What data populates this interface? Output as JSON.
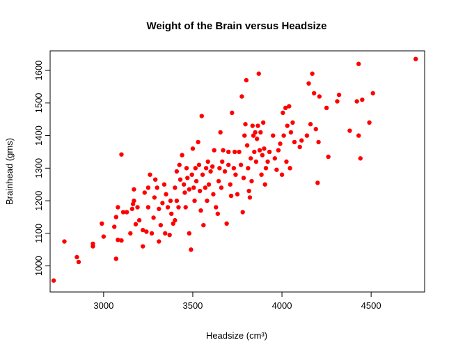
{
  "chart_data": {
    "type": "scatter",
    "title": "Weight of the Brain versus Headsize",
    "xlabel": "Headsize (cm³)",
    "ylabel": "Brainhead (gms)",
    "xlim": [
      2700,
      4800
    ],
    "ylim": [
      920,
      1660
    ],
    "xticks": [
      3000,
      3500,
      4000,
      4500
    ],
    "yticks": [
      1000,
      1100,
      1200,
      1300,
      1400,
      1500,
      1600
    ],
    "grid": false,
    "legend": "none",
    "point_color": "#ff0000",
    "points": [
      [
        2720,
        955
      ],
      [
        2780,
        1075
      ],
      [
        2850,
        1027
      ],
      [
        2860,
        1012
      ],
      [
        2940,
        1060
      ],
      [
        2940,
        1068
      ],
      [
        2990,
        1130
      ],
      [
        3000,
        1090
      ],
      [
        3060,
        1120
      ],
      [
        3070,
        1022
      ],
      [
        3070,
        1150
      ],
      [
        3080,
        1080
      ],
      [
        3080,
        1180
      ],
      [
        3100,
        1078
      ],
      [
        3100,
        1342
      ],
      [
        3110,
        1165
      ],
      [
        3130,
        1165
      ],
      [
        3150,
        1100
      ],
      [
        3160,
        1175
      ],
      [
        3165,
        1190
      ],
      [
        3170,
        1200
      ],
      [
        3170,
        1235
      ],
      [
        3180,
        1128
      ],
      [
        3190,
        1180
      ],
      [
        3200,
        1140
      ],
      [
        3220,
        1060
      ],
      [
        3220,
        1110
      ],
      [
        3230,
        1225
      ],
      [
        3240,
        1105
      ],
      [
        3250,
        1180
      ],
      [
        3250,
        1240
      ],
      [
        3260,
        1280
      ],
      [
        3270,
        1100
      ],
      [
        3280,
        1148
      ],
      [
        3285,
        1210
      ],
      [
        3290,
        1265
      ],
      [
        3300,
        1240
      ],
      [
        3310,
        1075
      ],
      [
        3310,
        1175
      ],
      [
        3320,
        1125
      ],
      [
        3330,
        1193
      ],
      [
        3340,
        1250
      ],
      [
        3345,
        1100
      ],
      [
        3350,
        1220
      ],
      [
        3360,
        1180
      ],
      [
        3370,
        1095
      ],
      [
        3375,
        1200
      ],
      [
        3380,
        1160
      ],
      [
        3390,
        1130
      ],
      [
        3400,
        1140
      ],
      [
        3400,
        1240
      ],
      [
        3410,
        1200
      ],
      [
        3410,
        1290
      ],
      [
        3420,
        1180
      ],
      [
        3425,
        1310
      ],
      [
        3430,
        1265
      ],
      [
        3440,
        1340
      ],
      [
        3450,
        1250
      ],
      [
        3455,
        1225
      ],
      [
        3460,
        1180
      ],
      [
        3465,
        1300
      ],
      [
        3470,
        1270
      ],
      [
        3480,
        1100
      ],
      [
        3480,
        1235
      ],
      [
        3490,
        1050
      ],
      [
        3495,
        1280
      ],
      [
        3500,
        1360
      ],
      [
        3505,
        1240
      ],
      [
        3510,
        1200
      ],
      [
        3515,
        1300
      ],
      [
        3520,
        1260
      ],
      [
        3530,
        1380
      ],
      [
        3535,
        1310
      ],
      [
        3540,
        1230
      ],
      [
        3545,
        1170
      ],
      [
        3550,
        1460
      ],
      [
        3555,
        1280
      ],
      [
        3560,
        1125
      ],
      [
        3570,
        1240
      ],
      [
        3575,
        1300
      ],
      [
        3580,
        1200
      ],
      [
        3585,
        1320
      ],
      [
        3590,
        1250
      ],
      [
        3600,
        1290
      ],
      [
        3610,
        1305
      ],
      [
        3615,
        1220
      ],
      [
        3620,
        1355
      ],
      [
        3630,
        1180
      ],
      [
        3640,
        1160
      ],
      [
        3645,
        1260
      ],
      [
        3650,
        1300
      ],
      [
        3655,
        1410
      ],
      [
        3660,
        1240
      ],
      [
        3665,
        1320
      ],
      [
        3670,
        1355
      ],
      [
        3680,
        1290
      ],
      [
        3690,
        1130
      ],
      [
        3700,
        1310
      ],
      [
        3700,
        1350
      ],
      [
        3710,
        1250
      ],
      [
        3715,
        1215
      ],
      [
        3720,
        1470
      ],
      [
        3730,
        1300
      ],
      [
        3735,
        1350
      ],
      [
        3740,
        1280
      ],
      [
        3750,
        1220
      ],
      [
        3760,
        1350
      ],
      [
        3770,
        1310
      ],
      [
        3775,
        1520
      ],
      [
        3780,
        1165
      ],
      [
        3785,
        1270
      ],
      [
        3790,
        1400
      ],
      [
        3795,
        1435
      ],
      [
        3800,
        1570
      ],
      [
        3805,
        1370
      ],
      [
        3810,
        1300
      ],
      [
        3815,
        1230
      ],
      [
        3820,
        1210
      ],
      [
        3825,
        1330
      ],
      [
        3830,
        1260
      ],
      [
        3835,
        1430
      ],
      [
        3840,
        1400
      ],
      [
        3845,
        1350
      ],
      [
        3850,
        1410
      ],
      [
        3855,
        1320
      ],
      [
        3860,
        1390
      ],
      [
        3865,
        1430
      ],
      [
        3870,
        1590
      ],
      [
        3875,
        1355
      ],
      [
        3880,
        1410
      ],
      [
        3885,
        1280
      ],
      [
        3890,
        1340
      ],
      [
        3895,
        1440
      ],
      [
        3900,
        1360
      ],
      [
        3905,
        1250
      ],
      [
        3910,
        1300
      ],
      [
        3920,
        1320
      ],
      [
        3930,
        1350
      ],
      [
        3950,
        1400
      ],
      [
        3960,
        1330
      ],
      [
        3970,
        1295
      ],
      [
        3980,
        1355
      ],
      [
        3990,
        1375
      ],
      [
        4000,
        1280
      ],
      [
        4005,
        1470
      ],
      [
        4010,
        1400
      ],
      [
        4020,
        1485
      ],
      [
        4025,
        1320
      ],
      [
        4030,
        1430
      ],
      [
        4040,
        1490
      ],
      [
        4045,
        1300
      ],
      [
        4050,
        1410
      ],
      [
        4060,
        1440
      ],
      [
        4070,
        1380
      ],
      [
        4100,
        1365
      ],
      [
        4110,
        1385
      ],
      [
        4140,
        1400
      ],
      [
        4150,
        1560
      ],
      [
        4160,
        1435
      ],
      [
        4170,
        1590
      ],
      [
        4180,
        1530
      ],
      [
        4190,
        1420
      ],
      [
        4200,
        1255
      ],
      [
        4205,
        1380
      ],
      [
        4210,
        1520
      ],
      [
        4250,
        1485
      ],
      [
        4260,
        1335
      ],
      [
        4310,
        1505
      ],
      [
        4320,
        1525
      ],
      [
        4380,
        1415
      ],
      [
        4420,
        1505
      ],
      [
        4430,
        1620
      ],
      [
        4430,
        1400
      ],
      [
        4440,
        1330
      ],
      [
        4450,
        1510
      ],
      [
        4490,
        1440
      ],
      [
        4510,
        1530
      ],
      [
        4750,
        1635
      ]
    ]
  }
}
